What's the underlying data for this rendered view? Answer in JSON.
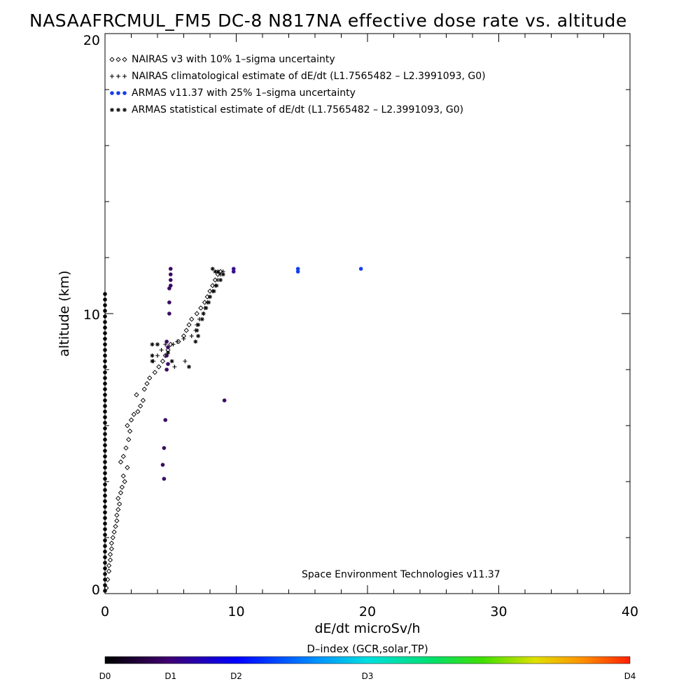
{
  "chart_data": {
    "type": "scatter",
    "title": "NASAAFRCMUL_FM5 DC-8   N817NA effective dose rate vs. altitude",
    "xlabel": "dE/dt microSv/h",
    "ylabel": "altitude (km)",
    "xlim": [
      0,
      40
    ],
    "ylim": [
      0,
      20
    ],
    "x_ticks": [
      "0",
      "10",
      "20",
      "30",
      "40"
    ],
    "y_ticks": [
      "0",
      "10",
      "20"
    ],
    "grid": false,
    "legend_position": "top-left",
    "credit": "Space Environment Technologies v11.37",
    "colorbar": {
      "title": "D–index (GCR,solar,TP)",
      "labels": [
        "D0",
        "D1",
        "D2",
        "D3",
        "D4"
      ],
      "label_positions": [
        0,
        0.125,
        0.25,
        0.5,
        1.0
      ]
    },
    "series": [
      {
        "name": "NAIRAS v3 with 10% 1–sigma uncertainty",
        "marker": "diamond",
        "color": "#000000",
        "points": [
          [
            0.1,
            0.2
          ],
          [
            0.2,
            0.5
          ],
          [
            0.3,
            0.8
          ],
          [
            0.3,
            1.0
          ],
          [
            0.4,
            1.2
          ],
          [
            0.4,
            1.4
          ],
          [
            0.5,
            1.6
          ],
          [
            0.5,
            1.8
          ],
          [
            0.6,
            2.0
          ],
          [
            0.7,
            2.2
          ],
          [
            0.8,
            2.4
          ],
          [
            0.9,
            2.6
          ],
          [
            0.9,
            2.8
          ],
          [
            1.0,
            3.0
          ],
          [
            1.1,
            3.2
          ],
          [
            1.0,
            3.4
          ],
          [
            1.2,
            3.6
          ],
          [
            1.3,
            3.8
          ],
          [
            1.5,
            4.0
          ],
          [
            1.4,
            4.2
          ],
          [
            1.7,
            4.5
          ],
          [
            1.2,
            4.7
          ],
          [
            1.4,
            4.9
          ],
          [
            1.6,
            5.2
          ],
          [
            1.8,
            5.5
          ],
          [
            1.9,
            5.8
          ],
          [
            1.7,
            6.0
          ],
          [
            2.0,
            6.2
          ],
          [
            2.2,
            6.4
          ],
          [
            2.5,
            6.5
          ],
          [
            2.7,
            6.7
          ],
          [
            2.9,
            6.9
          ],
          [
            2.4,
            7.1
          ],
          [
            3.0,
            7.3
          ],
          [
            3.2,
            7.5
          ],
          [
            3.4,
            7.7
          ],
          [
            3.8,
            7.9
          ],
          [
            4.1,
            8.1
          ],
          [
            4.4,
            8.3
          ],
          [
            4.6,
            8.5
          ],
          [
            4.8,
            8.7
          ],
          [
            5.0,
            8.9
          ],
          [
            5.6,
            9.0
          ],
          [
            6.0,
            9.2
          ],
          [
            6.2,
            9.4
          ],
          [
            6.4,
            9.6
          ],
          [
            6.6,
            9.8
          ],
          [
            7.0,
            10.0
          ],
          [
            7.3,
            10.2
          ],
          [
            7.6,
            10.4
          ],
          [
            7.8,
            10.6
          ],
          [
            8.0,
            10.8
          ],
          [
            8.2,
            11.0
          ],
          [
            8.4,
            11.2
          ],
          [
            8.6,
            11.4
          ],
          [
            8.8,
            11.5
          ]
        ]
      },
      {
        "name": "NAIRAS climatological estimate of dE/dt (L1.7565482 – L2.3991093, G0)",
        "marker": "plus",
        "color": "#000000",
        "points": [
          [
            3.7,
            8.3
          ],
          [
            4.0,
            8.5
          ],
          [
            4.3,
            8.7
          ],
          [
            4.6,
            8.9
          ],
          [
            5.2,
            8.9
          ],
          [
            5.5,
            9.0
          ],
          [
            6.0,
            9.1
          ],
          [
            6.6,
            9.2
          ],
          [
            6.9,
            9.4
          ],
          [
            7.0,
            9.6
          ],
          [
            7.2,
            9.8
          ],
          [
            7.5,
            10.0
          ],
          [
            7.6,
            10.2
          ],
          [
            7.8,
            10.4
          ],
          [
            8.0,
            10.6
          ],
          [
            8.2,
            10.8
          ],
          [
            8.4,
            11.0
          ],
          [
            8.6,
            11.2
          ],
          [
            8.8,
            11.4
          ],
          [
            9.0,
            11.5
          ],
          [
            5.3,
            8.1
          ],
          [
            6.1,
            8.3
          ]
        ]
      },
      {
        "name": "ARMAS v11.37 with 25% 1–sigma uncertainty",
        "marker": "dot",
        "color": "#1030e0",
        "points": [
          [
            4.5,
            4.1
          ],
          [
            4.4,
            4.6
          ],
          [
            4.5,
            5.2
          ],
          [
            4.6,
            6.2
          ],
          [
            4.7,
            8.0
          ],
          [
            4.8,
            8.2
          ],
          [
            4.7,
            8.5
          ],
          [
            4.8,
            8.8
          ],
          [
            4.7,
            9.0
          ],
          [
            4.9,
            10.0
          ],
          [
            4.9,
            10.4
          ],
          [
            4.9,
            10.9
          ],
          [
            5.0,
            11.0
          ],
          [
            5.0,
            11.2
          ],
          [
            5.0,
            11.4
          ],
          [
            5.0,
            11.6
          ],
          [
            9.1,
            6.9
          ],
          [
            9.8,
            11.5
          ],
          [
            9.8,
            11.6
          ],
          [
            14.7,
            11.5
          ],
          [
            14.7,
            11.6
          ],
          [
            19.5,
            11.6
          ]
        ]
      },
      {
        "name": "ARMAS statistical estimate of dE/dt (L1.7565482 – L2.3991093, G0)",
        "marker": "asterisk",
        "color": "#000000",
        "points": [
          [
            3.6,
            8.3
          ],
          [
            3.6,
            8.5
          ],
          [
            3.6,
            8.9
          ],
          [
            4.0,
            8.9
          ],
          [
            4.8,
            8.6
          ],
          [
            5.1,
            8.3
          ],
          [
            6.4,
            8.1
          ],
          [
            6.9,
            9.0
          ],
          [
            7.1,
            9.2
          ],
          [
            7.0,
            9.4
          ],
          [
            7.1,
            9.6
          ],
          [
            7.4,
            9.8
          ],
          [
            7.5,
            10.0
          ],
          [
            7.7,
            10.2
          ],
          [
            7.9,
            10.4
          ],
          [
            8.0,
            10.6
          ],
          [
            8.3,
            10.8
          ],
          [
            8.5,
            11.0
          ],
          [
            8.8,
            11.2
          ],
          [
            9.0,
            11.4
          ],
          [
            8.6,
            11.5
          ],
          [
            8.2,
            11.6
          ],
          [
            8.4,
            11.5
          ]
        ]
      },
      {
        "name": "",
        "marker": "dot",
        "color": "#000000",
        "points": [
          [
            0.0,
            0.1
          ],
          [
            0.0,
            0.3
          ],
          [
            0.0,
            0.5
          ],
          [
            0.0,
            0.7
          ],
          [
            0.0,
            0.9
          ],
          [
            0.0,
            1.1
          ],
          [
            0.0,
            1.3
          ],
          [
            0.0,
            1.5
          ],
          [
            0.0,
            1.7
          ],
          [
            0.0,
            1.9
          ],
          [
            0.0,
            2.1
          ],
          [
            0.0,
            2.3
          ],
          [
            0.0,
            2.5
          ],
          [
            0.0,
            2.7
          ],
          [
            0.0,
            2.9
          ],
          [
            0.0,
            3.1
          ],
          [
            0.0,
            3.3
          ],
          [
            0.0,
            3.5
          ],
          [
            0.0,
            3.7
          ],
          [
            0.0,
            3.9
          ],
          [
            0.0,
            4.1
          ],
          [
            0.0,
            4.3
          ],
          [
            0.0,
            4.5
          ],
          [
            0.0,
            4.7
          ],
          [
            0.0,
            4.9
          ],
          [
            0.0,
            5.1
          ],
          [
            0.0,
            5.3
          ],
          [
            0.0,
            5.5
          ],
          [
            0.0,
            5.7
          ],
          [
            0.0,
            5.9
          ],
          [
            0.0,
            6.1
          ],
          [
            0.0,
            6.3
          ],
          [
            0.0,
            6.5
          ],
          [
            0.0,
            6.7
          ],
          [
            0.0,
            6.9
          ],
          [
            0.0,
            7.1
          ],
          [
            0.0,
            7.3
          ],
          [
            0.0,
            7.5
          ],
          [
            0.0,
            7.7
          ],
          [
            0.0,
            7.9
          ],
          [
            0.0,
            8.1
          ],
          [
            0.0,
            8.3
          ],
          [
            0.0,
            8.5
          ],
          [
            0.0,
            8.7
          ],
          [
            0.0,
            8.9
          ],
          [
            0.0,
            9.1
          ],
          [
            0.0,
            9.3
          ],
          [
            0.0,
            9.5
          ],
          [
            0.0,
            9.7
          ],
          [
            0.0,
            9.9
          ],
          [
            0.0,
            10.1
          ],
          [
            0.0,
            10.3
          ],
          [
            0.0,
            10.5
          ],
          [
            0.0,
            10.7
          ]
        ]
      }
    ]
  }
}
